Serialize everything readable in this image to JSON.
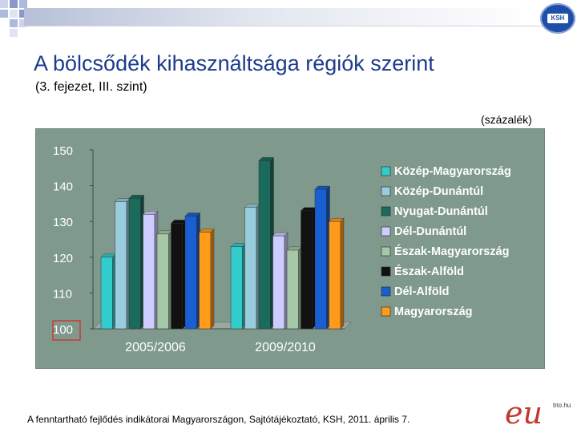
{
  "header": {
    "title": "A bölcsődék kihasználtsága régiók szerint",
    "subtitle": "(3. fejezet, III. szint)",
    "unit": "(százalék)",
    "logo_text": "KSH"
  },
  "footer": {
    "source": "A fenntartható fejlődés indikátorai Magyarországon, Sajtótájékoztató, KSH, 2011. április 7.",
    "logo_text": "eu",
    "logo_small_text": "trio.hu"
  },
  "chart_data": {
    "type": "bar",
    "categories": [
      "2005/2006",
      "2009/2010"
    ],
    "ylim": [
      100,
      150
    ],
    "yticks": [
      100,
      110,
      120,
      130,
      140,
      150
    ],
    "ytick_labels": [
      "100",
      "110",
      "120",
      "130",
      "140",
      "150"
    ],
    "legend_position": "right",
    "grid": false,
    "series": [
      {
        "name": "Közép-Magyarország",
        "color": "#33cccc",
        "values": [
          120,
          123
        ]
      },
      {
        "name": "Közép-Dunántúl",
        "color": "#99ccdd",
        "values": [
          135.5,
          134
        ]
      },
      {
        "name": "Nyugat-Dunántúl",
        "color": "#1a6b5c",
        "values": [
          136.5,
          147
        ]
      },
      {
        "name": "Dél-Dunántúl",
        "color": "#ccccff",
        "values": [
          132,
          126
        ]
      },
      {
        "name": "Észak-Magyarország",
        "color": "#a5c8a8",
        "values": [
          126.5,
          122
        ]
      },
      {
        "name": "Észak-Alföld",
        "color": "#111111",
        "values": [
          129.5,
          133
        ]
      },
      {
        "name": "Dél-Alföld",
        "color": "#1a5fd1",
        "values": [
          131.5,
          139
        ]
      },
      {
        "name": "Magyarország",
        "color": "#ff9a1a",
        "values": [
          127,
          130
        ]
      }
    ]
  }
}
